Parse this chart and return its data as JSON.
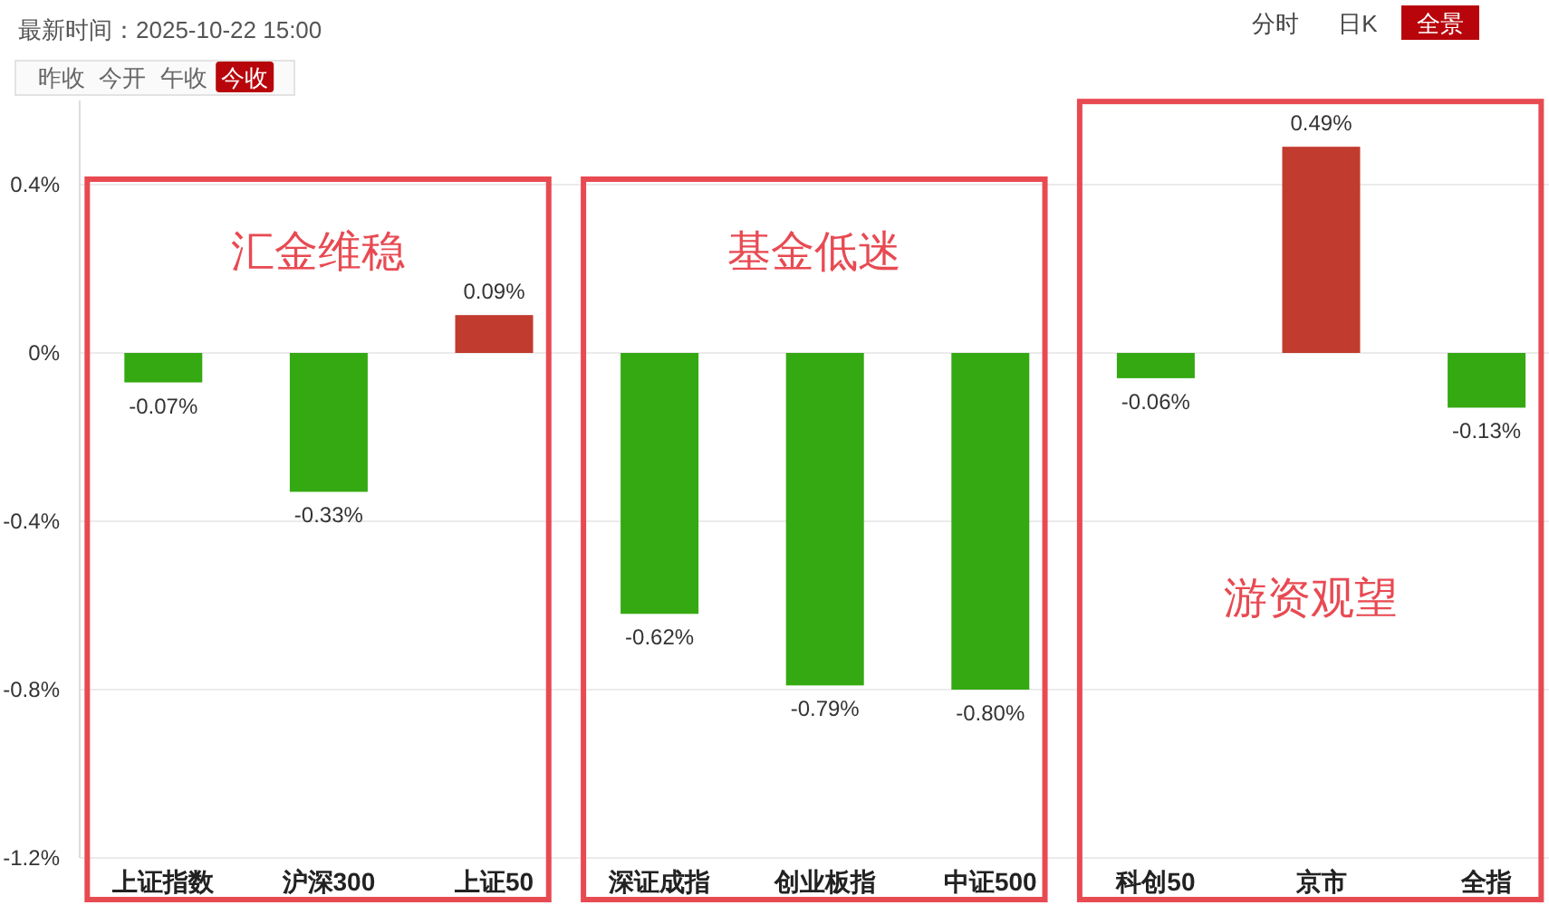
{
  "chart_data": {
    "type": "bar",
    "title": "最新时间：2025-10-22 15:00",
    "annotations": [
      "昨收",
      "今开",
      "午收",
      "今收",
      "分时",
      "日K",
      "全景",
      "汇金维稳",
      "基金低迷",
      "游资观望"
    ],
    "categories": [
      "上证指数",
      "沪深300",
      "上证50",
      "深证成指",
      "创业板指",
      "中证500",
      "科创50",
      "京市",
      "全指"
    ],
    "values": [
      -0.07,
      -0.33,
      0.09,
      -0.62,
      -0.79,
      -0.8,
      -0.06,
      0.49,
      -0.13
    ],
    "colors": [
      "#34a912",
      "#34a912",
      "#c23b2f",
      "#34a912",
      "#34a912",
      "#34a912",
      "#34a912",
      "#c23b2f",
      "#34a912"
    ],
    "value_labels": [
      "-0.07%",
      "-0.33%",
      "0.09%",
      "-0.62%",
      "-0.79%",
      "-0.80%",
      "-0.06%",
      "0.49%",
      "-0.13%"
    ],
    "ylim": [
      -1.2,
      0.6
    ],
    "yticks": [
      {
        "value": 0.4,
        "label": "0.4%"
      },
      {
        "value": 0,
        "label": "0%"
      },
      {
        "value": -0.4,
        "label": "-0.4%"
      },
      {
        "value": -0.8,
        "label": "-0.8%"
      },
      {
        "value": -1.2,
        "label": "-1.2%"
      }
    ],
    "grid": "y"
  }
}
